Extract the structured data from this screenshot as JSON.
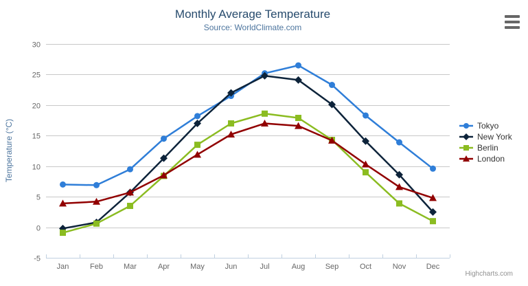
{
  "theme": {
    "title_color": "#274b6d",
    "subtitle_color": "#4d759e",
    "axis_title_color": "#4d759e",
    "tick_label_color": "#666666",
    "grid_color": "#c8c8c8",
    "axis_line_color": "#c0d0e0",
    "legend_text_color": "#333333",
    "credits_color": "#909090",
    "menu_icon_color": "#666666",
    "background": "#ffffff"
  },
  "icons": {
    "menu": "hamburger-icon"
  },
  "credits": {
    "text": "Highcharts.com"
  },
  "chart_data": {
    "type": "line",
    "title": "Monthly Average Temperature",
    "subtitle": "Source: WorldClimate.com",
    "categories": [
      "Jan",
      "Feb",
      "Mar",
      "Apr",
      "May",
      "Jun",
      "Jul",
      "Aug",
      "Sep",
      "Oct",
      "Nov",
      "Dec"
    ],
    "xlabel": "",
    "ylabel": "Temperature (°C)",
    "ylim": [
      -5,
      30
    ],
    "ytick_interval": 5,
    "yticks": [
      -5,
      0,
      5,
      10,
      15,
      20,
      25,
      30
    ],
    "grid": true,
    "legend_position": "right",
    "series": [
      {
        "name": "Tokyo",
        "color": "#2f7ed8",
        "marker": "circle",
        "values": [
          7.0,
          6.9,
          9.5,
          14.5,
          18.2,
          21.5,
          25.2,
          26.5,
          23.3,
          18.3,
          13.9,
          9.6
        ]
      },
      {
        "name": "New York",
        "color": "#0d233a",
        "marker": "diamond",
        "values": [
          -0.2,
          0.8,
          5.7,
          11.3,
          17.0,
          22.0,
          24.8,
          24.1,
          20.1,
          14.1,
          8.6,
          2.5
        ]
      },
      {
        "name": "Berlin",
        "color": "#8bbc21",
        "marker": "square",
        "values": [
          -0.9,
          0.6,
          3.5,
          8.4,
          13.5,
          17.0,
          18.6,
          17.9,
          14.3,
          9.0,
          3.9,
          1.0
        ]
      },
      {
        "name": "London",
        "color": "#910000",
        "marker": "triangle",
        "values": [
          3.9,
          4.2,
          5.7,
          8.5,
          11.9,
          15.2,
          17.0,
          16.6,
          14.2,
          10.3,
          6.6,
          4.8
        ]
      }
    ]
  }
}
